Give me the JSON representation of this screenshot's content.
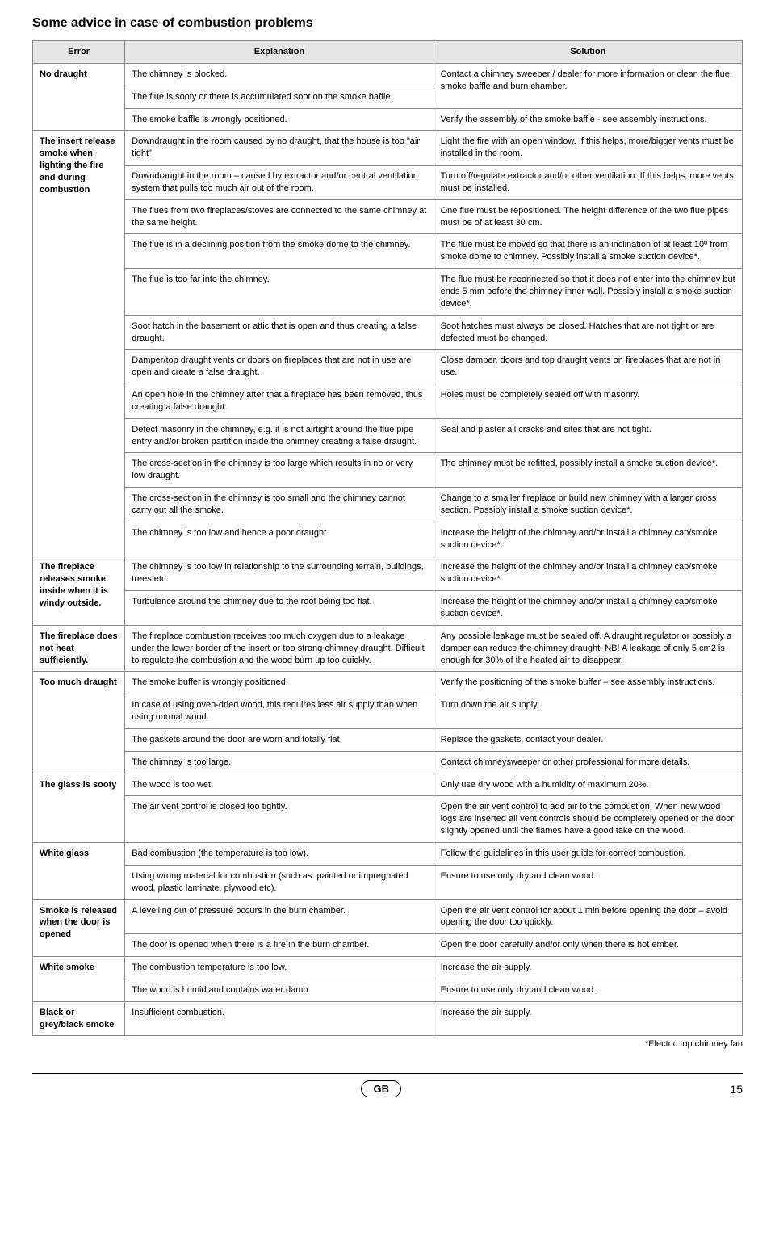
{
  "title": "Some advice in case of combustion problems",
  "headers": [
    "Error",
    "Explanation",
    "Solution"
  ],
  "groups": [
    {
      "error": "No draught",
      "rows": [
        {
          "exp": "The chimney is blocked.",
          "sol_rowspan": 2,
          "sol": "Contact a chimney sweeper / dealer for more information or clean the flue, smoke baffle and burn chamber."
        },
        {
          "exp": "The flue is sooty or there is accumulated soot on the smoke baffle."
        },
        {
          "exp": "The smoke baffle is wrongly positioned.",
          "sol": "Verify the assembly of the smoke baffle - see assembly instructions."
        }
      ]
    },
    {
      "error": "The insert release smoke when lighting the fire and during combustion",
      "rows": [
        {
          "exp": "Downdraught in the room caused by no draught, that the house is too \"air tight\".",
          "sol": "Light the fire with an open window. If this helps, more/bigger vents must be installed in the room."
        },
        {
          "exp": "Downdraught in the room – caused by extractor and/or central ventilation system that pulls too much air out of the room.",
          "sol": "Turn off/regulate extractor and/or other ventilation. If this helps, more vents must be installed."
        },
        {
          "exp": "The flues from two fireplaces/stoves are connected to the same chimney at the same height.",
          "sol": "One flue must be repositioned. The height difference of the two flue pipes must be of at least 30 cm."
        },
        {
          "exp": "The flue is in a declining position from the smoke dome to the chimney.",
          "sol": "The flue must be moved so that there is an inclination of at least 10º from smoke dome to chimney. Possibly install a smoke suction device*."
        },
        {
          "exp": "The flue is too far into the chimney.",
          "sol": "The flue must be reconnected so that it does not enter into the chimney but ends 5 mm before the chimney inner wall. Possibly install a smoke suction device*."
        },
        {
          "exp": "Soot hatch in the basement or attic that is open and thus creating a false draught.",
          "sol": "Soot hatches must always be closed. Hatches that are not tight or are defected must be changed."
        },
        {
          "exp": "Damper/top draught vents or doors on fireplaces that are not in use are open and create a false draught.",
          "sol": "Close damper, doors and top draught vents on fireplaces that are not in use."
        },
        {
          "exp": "An open hole in the chimney after that a fireplace has been removed, thus creating a false draught.",
          "sol": "Holes must be completely sealed off with masonry."
        },
        {
          "exp": "Defect masonry in the chimney, e.g. it is not airtight around the flue pipe entry and/or broken partition inside the chimney creating a false draught.",
          "sol": "Seal and plaster all cracks and sites that are not tight."
        },
        {
          "exp": "The cross-section in the chimney is too large which results in no or very low draught.",
          "sol": "The chimney must be refitted, possibly install a smoke suction device*."
        },
        {
          "exp": "The cross-section in the chimney is too small and the chimney cannot carry out all the smoke.",
          "sol": "Change to a smaller fireplace or build new chimney with a larger cross section. Possibly install a smoke suction device*."
        },
        {
          "exp": "The chimney is too low and hence a poor draught.",
          "sol": "Increase the height of the chimney and/or install a chimney cap/smoke suction device*."
        }
      ]
    },
    {
      "error": "The fireplace releases smoke inside when it is windy outside.",
      "rows": [
        {
          "exp": "The chimney is too low in relationship to the surrounding terrain, buildings, trees etc.",
          "sol": "Increase the height of the chimney and/or install a chimney cap/smoke suction device*."
        },
        {
          "exp": "Turbulence around the chimney due to the roof being too flat.",
          "sol": "Increase the height of the chimney and/or install a chimney cap/smoke suction device*."
        }
      ]
    },
    {
      "error": "The fireplace does not heat sufficiently.",
      "rows": [
        {
          "exp": "The fireplace combustion receives too much oxygen due to a leakage under the lower border of the insert or too strong chimney draught. Difficult to regulate the combustion and the wood burn up too quickly.",
          "sol": "Any possible leakage must be sealed off. A draught regulator or possibly a damper can reduce the chimney draught. NB! A leakage of only 5 cm2 is enough for 30% of the heated air to disappear."
        }
      ]
    },
    {
      "error": "Too much draught",
      "rows": [
        {
          "exp": "The smoke buffer is wrongly positioned.",
          "sol": "Verify the positioning of the smoke buffer – see assembly instructions."
        },
        {
          "exp": "In case of using oven-dried wood, this requires less air supply than when using normal wood.",
          "sol": "Turn down the air supply."
        },
        {
          "exp": "The gaskets around the door are worn and totally flat.",
          "sol": "Replace the gaskets, contact your dealer."
        },
        {
          "exp": "The chimney is too large.",
          "sol": "Contact chimneysweeper or other professional for more details."
        }
      ]
    },
    {
      "error": "The glass is sooty",
      "rows": [
        {
          "exp": "The wood is too wet.",
          "sol": "Only use dry wood with a humidity of maximum 20%."
        },
        {
          "exp": "The air vent control is closed too tightly.",
          "sol": "Open the air vent control to add air to the combustion. When new wood logs are inserted all vent controls should be completely opened or the door slightly opened until the flames have a good take on the wood."
        }
      ]
    },
    {
      "error": "White glass",
      "rows": [
        {
          "exp": "Bad combustion (the temperature is too low).",
          "sol": "Follow the guidelines in this user guide for correct combustion."
        },
        {
          "exp": "Using wrong material for combustion (such as: painted or impregnated wood, plastic laminate, plywood etc).",
          "sol": "Ensure to use only dry and clean wood."
        }
      ]
    },
    {
      "error": "Smoke is released when the door is opened",
      "rows": [
        {
          "exp": "A levelling out of pressure occurs in the burn chamber.",
          "sol": "Open the air vent control for about 1 min before opening the door – avoid opening the door too quickly."
        },
        {
          "exp": "The door is opened when there is a fire in the burn chamber.",
          "sol": "Open the door carefully and/or only when there is hot ember."
        }
      ]
    },
    {
      "error": "White smoke",
      "rows": [
        {
          "exp": "The combustion temperature is too low.",
          "sol": "Increase the air supply."
        },
        {
          "exp": "The wood is humid and contains water damp.",
          "sol": "Ensure to use only dry and clean wood."
        }
      ]
    },
    {
      "error": "Black or grey/black smoke",
      "rows": [
        {
          "exp": "Insufficient combustion.",
          "sol": "Increase the air supply."
        }
      ]
    }
  ],
  "footnote": "*Electric top chimney fan",
  "footer": {
    "country": "GB",
    "page": "15"
  }
}
